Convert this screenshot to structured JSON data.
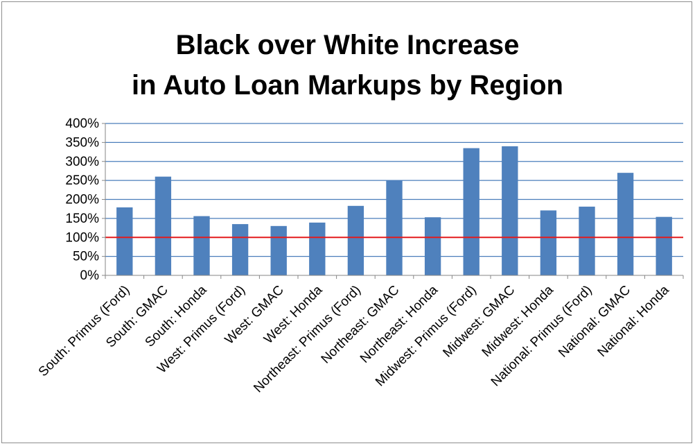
{
  "chart_data": {
    "type": "bar",
    "title": [
      "Black over White Increase",
      "in Auto Loan Markups by Region"
    ],
    "xlabel": "",
    "ylabel": "",
    "ylim": [
      0,
      400
    ],
    "y_tick_labels": [
      "0%",
      "50%",
      "100%",
      "150%",
      "200%",
      "250%",
      "300%",
      "350%",
      "400%"
    ],
    "y_ticks": [
      0,
      50,
      100,
      150,
      200,
      250,
      300,
      350,
      400
    ],
    "grid": true,
    "legend": "none",
    "categories": [
      "South: Primus (Ford)",
      "South: GMAC",
      "South: Honda",
      "West: Primus (Ford)",
      "West: GMAC",
      "West: Honda",
      "Northeast: Primus (Ford)",
      "Northeast: GMAC",
      "Northeast: Honda",
      "Midwest: Primus (Ford)",
      "Midwest: GMAC",
      "Midwest: Honda",
      "National: Primus (Ford)",
      "National: GMAC",
      "National: Honda"
    ],
    "values": [
      179,
      260,
      156,
      135,
      130,
      139,
      183,
      250,
      153,
      335,
      340,
      171,
      181,
      270,
      154
    ],
    "reference_line": 100,
    "colors": {
      "bar": "#4f81bd",
      "grid": "#4a7ebb",
      "reference_line": "#e41a1c",
      "axis": "#868686"
    }
  }
}
